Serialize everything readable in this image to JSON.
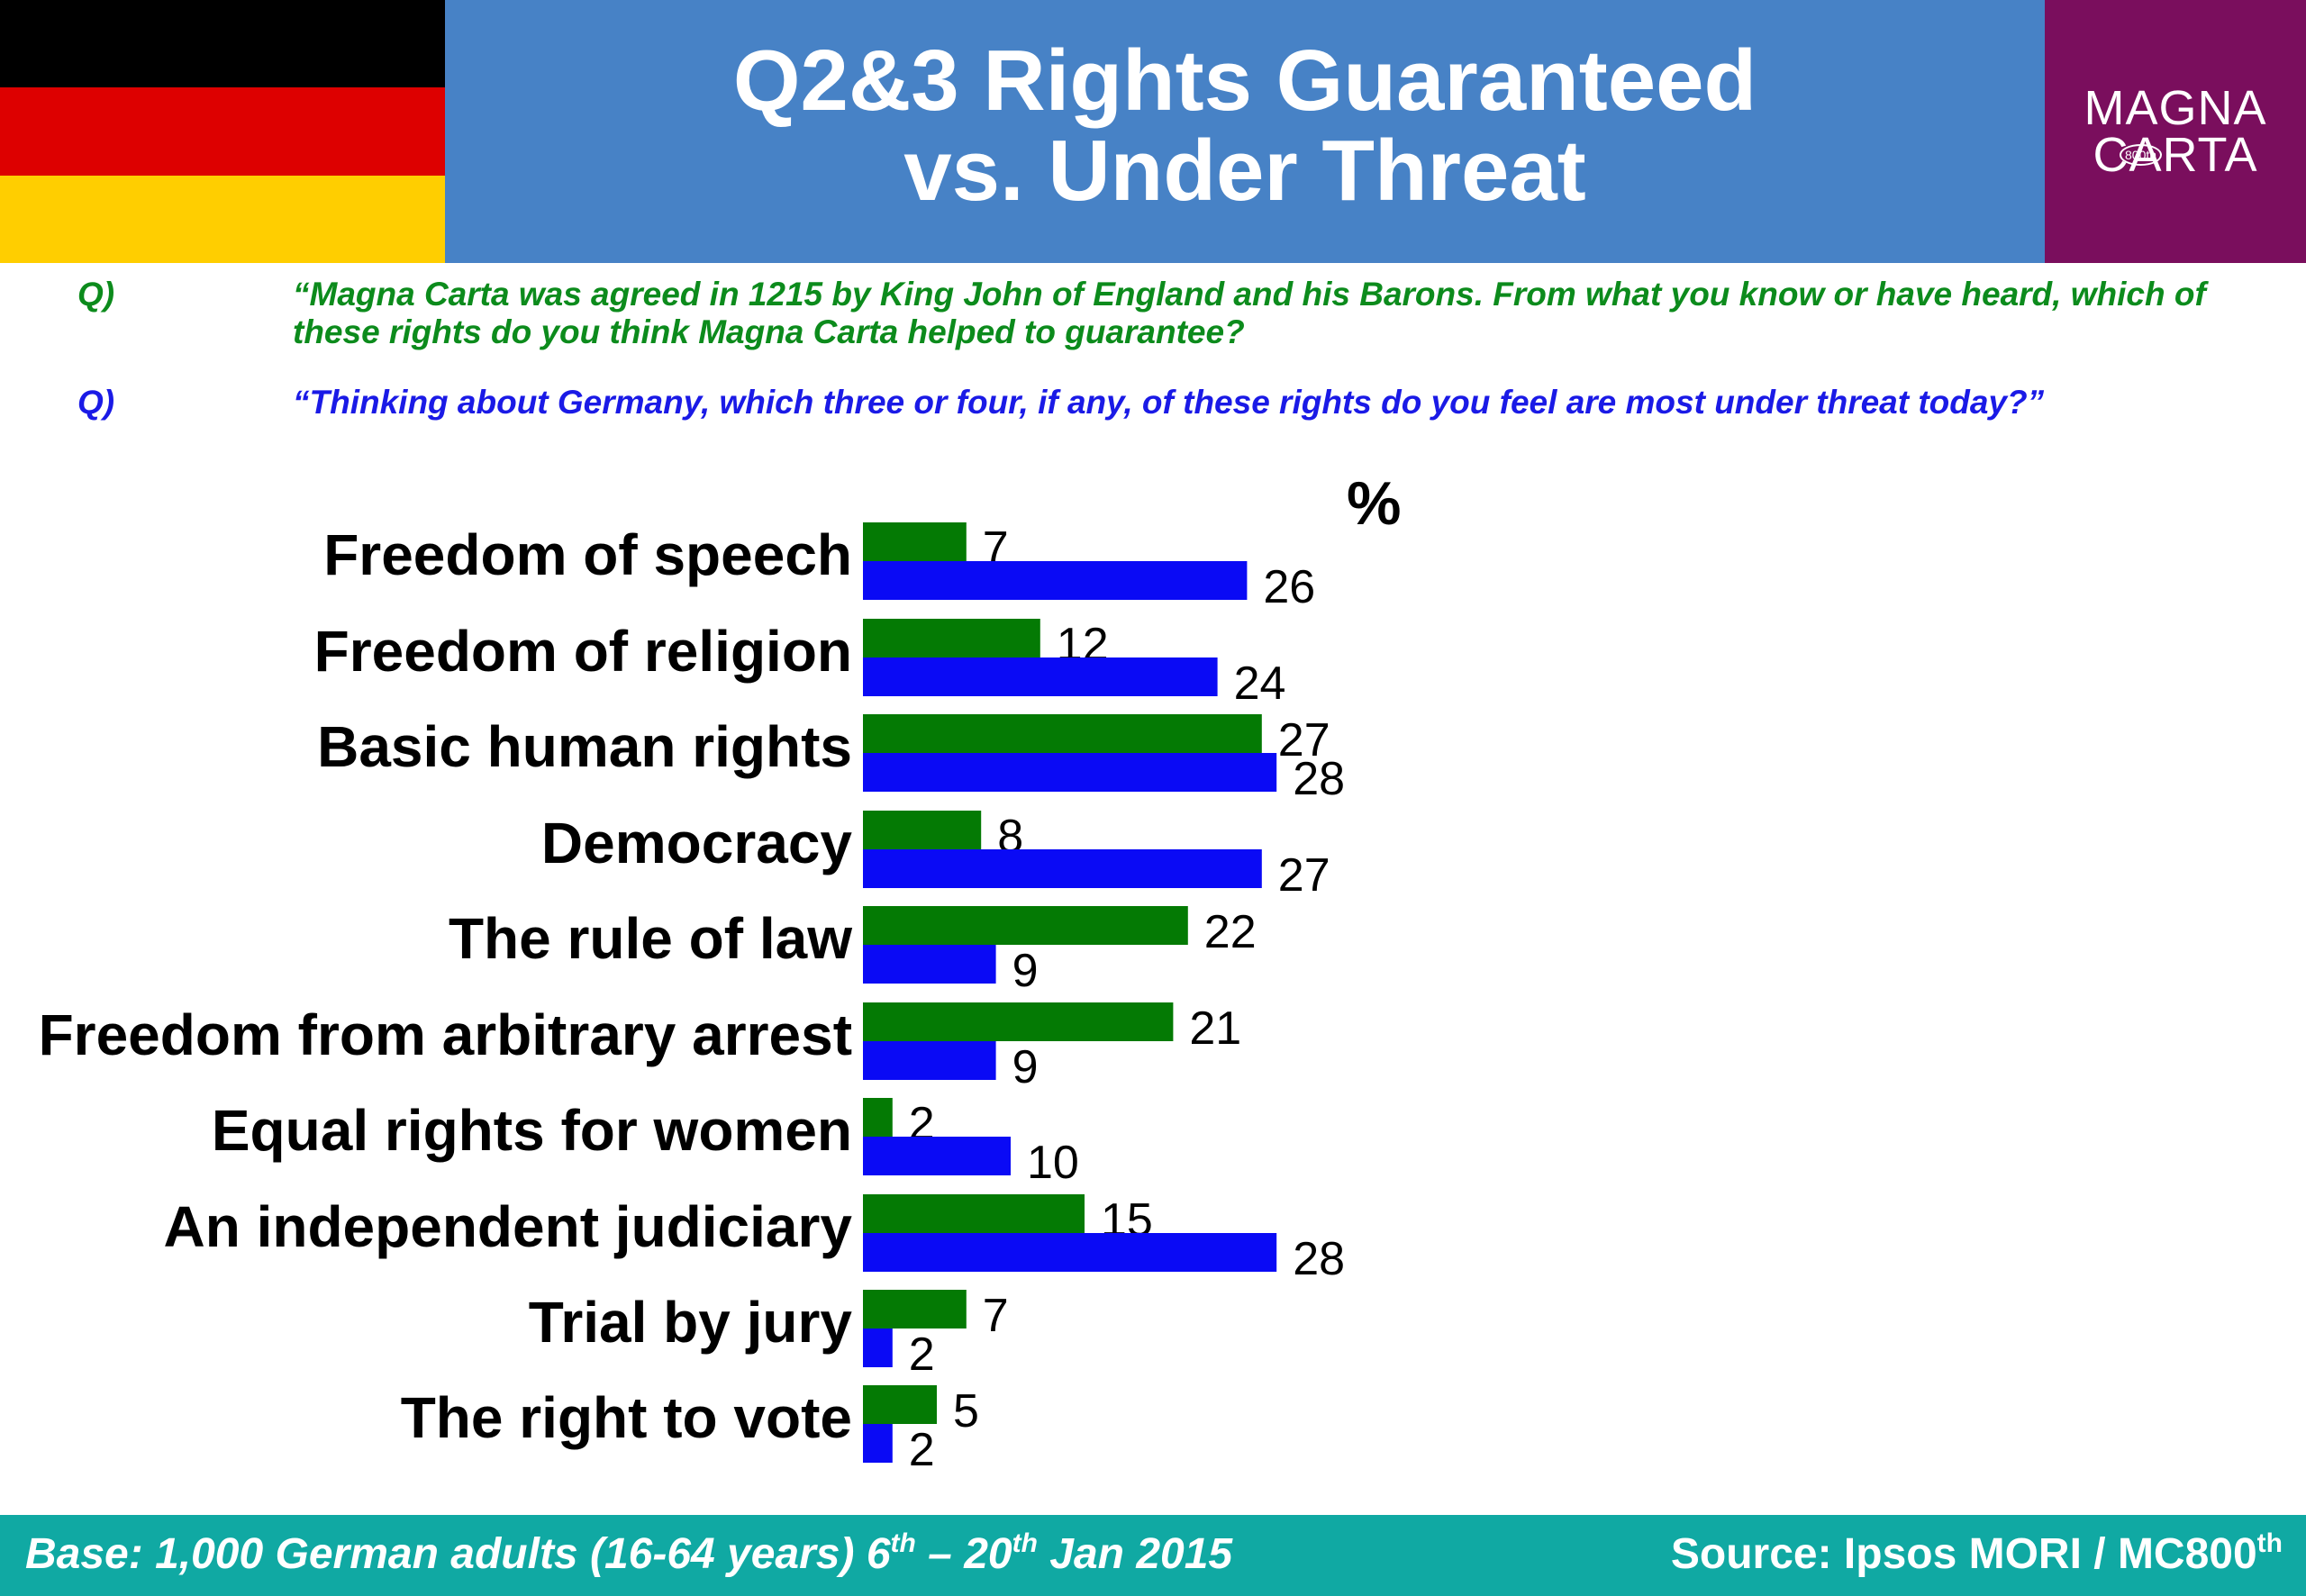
{
  "header": {
    "title_line1": "Q2&3 Rights Guaranteed",
    "title_line2": "vs. Under Threat"
  },
  "logo": {
    "line1": "MAGNA",
    "line2": "CARTA",
    "badge": "800th"
  },
  "flag": {
    "colors": [
      "#000000",
      "#dd0000",
      "#ffce00"
    ]
  },
  "questions": [
    {
      "label": "Q)",
      "text": "“Magna Carta was agreed in 1215 by King John of England and his Barons. From what you know or have heard, which of these rights do you think Magna Carta helped to guarantee?",
      "color": "#0c8b1c"
    },
    {
      "label": "Q)",
      "text": "“Thinking about Germany, which three or four, if any, of these rights do you feel are most under threat today?”",
      "color": "#1a1ae6"
    }
  ],
  "chart_data": {
    "type": "bar",
    "orientation": "horizontal",
    "unit_label": "%",
    "categories": [
      "Freedom of speech",
      "Freedom of religion",
      "Basic human rights",
      "Democracy",
      "The rule of law",
      "Freedom from arbitrary arrest",
      "Equal rights for women",
      "An independent judiciary",
      "Trial by jury",
      "The right to vote"
    ],
    "series": [
      {
        "values": [
          7,
          12,
          27,
          8,
          22,
          21,
          2,
          15,
          7,
          5
        ],
        "color": "#047a04"
      },
      {
        "values": [
          26,
          24,
          28,
          27,
          9,
          9,
          10,
          28,
          2,
          2
        ],
        "color": "#0a0af5"
      }
    ],
    "xlim": [
      0,
      30
    ],
    "grid": false,
    "legend": false
  },
  "footer": {
    "base_prefix": "Base: 1,000 German adults (16-64 years) 6",
    "base_sup1": "th",
    "base_mid": " – 20",
    "base_sup2": "th",
    "base_suffix": " Jan 2015",
    "source_prefix": "Source: Ipsos MORI / MC800",
    "source_sup": "th",
    "color": "#10a9a3"
  }
}
